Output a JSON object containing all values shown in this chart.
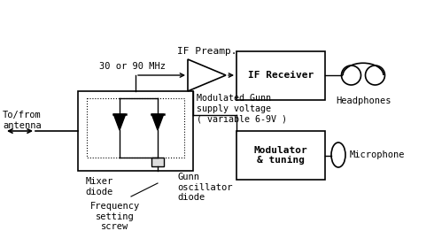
{
  "bg_color": "#ffffff",
  "line_color": "#000000",
  "if_preamp_label": "IF Preamp.",
  "freq_label": "30 or 90 MHz",
  "if_receiver_label": "IF Receiver",
  "modulator_label": "Modulator\n& tuning",
  "headphones_label": "Headphones",
  "microphone_label": "Microphone",
  "mixer_label": "Mixer\ndiode",
  "gunn_osc_label": "Gunn\noscillator\ndiode",
  "freq_screw_label": "Frequency\nsetting\nscrew",
  "to_from_label": "To/from\nantenna",
  "modulated_gunn_label": "Modulated Gunn\nsupply voltage\n( variable 6-9V )"
}
